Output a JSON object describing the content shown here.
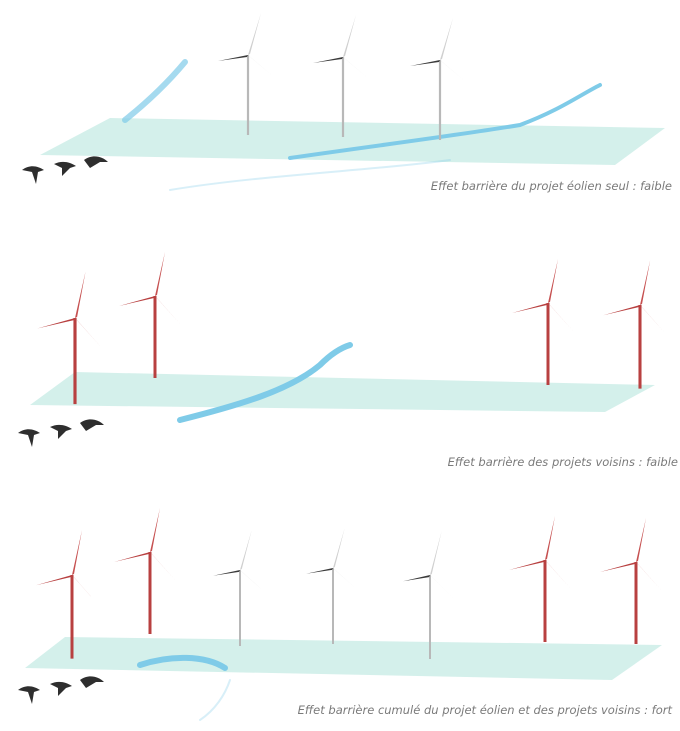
{
  "panels": [
    {
      "caption": "Effet barrière du projet éolien seul : faible"
    },
    {
      "caption": "Effet barrière  des projets voisins : faible"
    },
    {
      "caption": "Effet barrière cumulé du projet éolien et des projets voisins : fort"
    }
  ]
}
